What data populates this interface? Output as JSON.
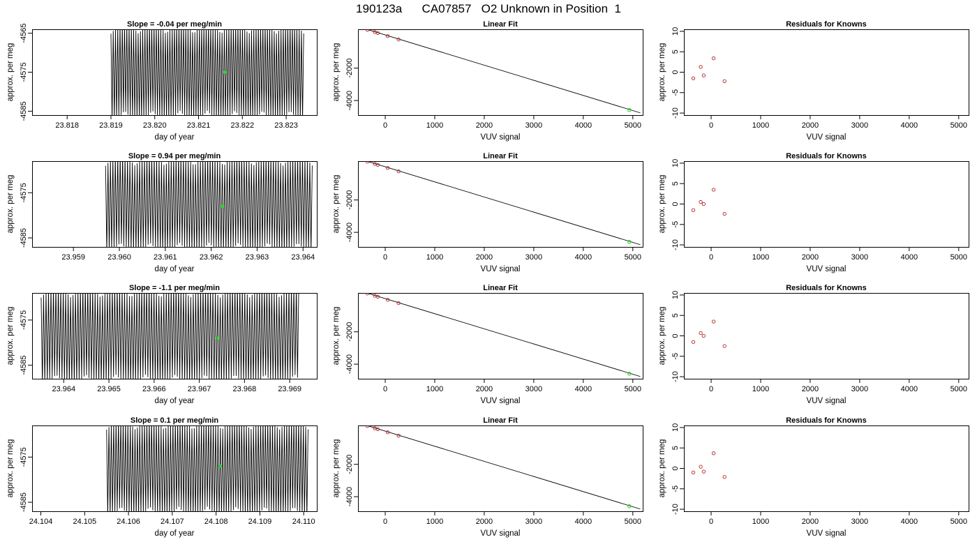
{
  "page": {
    "title": "190123a      CA07857   O2 Unknown in Position  1"
  },
  "colors": {
    "line": "#000000",
    "known_points": "#b22222",
    "unknown_point": "#22dd22",
    "background": "#ffffff"
  },
  "chart_data": [
    {
      "id": "r1-timeseries",
      "type": "line",
      "title": "Slope =  -0.04  per meg/min",
      "xlabel": "day of year",
      "ylabel": "approx. per meg",
      "xlim": [
        23.8172,
        23.8237
      ],
      "ylim": [
        -4586,
        -4564
      ],
      "xticks": [
        23.818,
        23.819,
        23.82,
        23.821,
        23.822,
        23.823
      ],
      "xtick_labels": [
        "23.818",
        "23.819",
        "23.820",
        "23.821",
        "23.822",
        "23.823"
      ],
      "yticks": [
        -4565,
        -4575,
        -4585
      ],
      "ytick_labels": [
        "-4565",
        "-4575",
        "-4585"
      ],
      "series": [
        {
          "x_start": 23.819,
          "x_end": 23.8234,
          "cycles": 85,
          "y_low": -4586,
          "y_high": -4564,
          "y_center": -4575
        }
      ],
      "unknown_point": {
        "x": 23.8216,
        "y": -4575.0
      }
    },
    {
      "id": "r1-fit",
      "type": "scatter",
      "title": "Linear Fit",
      "xlabel": "VUV signal",
      "ylabel": "approx. per meg",
      "xlim": [
        -550,
        5200
      ],
      "ylim": [
        -4900,
        400
      ],
      "xticks": [
        0,
        1000,
        2000,
        3000,
        4000,
        5000
      ],
      "xtick_labels": [
        "0",
        "1000",
        "2000",
        "3000",
        "4000",
        "5000"
      ],
      "yticks": [
        -2000,
        -4000
      ],
      "ytick_labels": [
        "-2000",
        "-4000"
      ],
      "fit_line": {
        "x": [
          -480,
          5150
        ],
        "y": [
          500,
          -4760
        ]
      },
      "known_points": {
        "x": [
          -360,
          -210,
          -150,
          50,
          270
        ],
        "y": [
          370,
          230,
          170,
          -20,
          -230
        ]
      },
      "unknown_point": {
        "x": 4930,
        "y": -4590
      }
    },
    {
      "id": "r1-resid",
      "type": "scatter",
      "title": "Residuals for Knowns",
      "xlabel": "VUV signal",
      "ylabel": "approx. per meg",
      "xlim": [
        -550,
        5200
      ],
      "ylim": [
        -10.5,
        10.5
      ],
      "xticks": [
        0,
        1000,
        2000,
        3000,
        4000,
        5000
      ],
      "xtick_labels": [
        "0",
        "1000",
        "2000",
        "3000",
        "4000",
        "5000"
      ],
      "yticks": [
        10,
        5,
        0,
        -5,
        -10
      ],
      "ytick_labels": [
        "10",
        "5",
        "0",
        "-5",
        "-10"
      ],
      "known_points": {
        "x": [
          -360,
          -210,
          -150,
          50,
          270
        ],
        "y": [
          -1.5,
          1.3,
          -0.8,
          3.4,
          -2.2
        ]
      }
    },
    {
      "id": "r2-timeseries",
      "type": "line",
      "title": "Slope =  0.94  per meg/min",
      "xlabel": "day of year",
      "ylabel": "approx. per meg",
      "xlim": [
        23.9581,
        23.9643
      ],
      "ylim": [
        -4587,
        -4568
      ],
      "xticks": [
        23.959,
        23.96,
        23.961,
        23.962,
        23.963,
        23.964
      ],
      "xtick_labels": [
        "23.959",
        "23.960",
        "23.961",
        "23.962",
        "23.963",
        "23.964"
      ],
      "yticks": [
        -4575,
        -4585
      ],
      "ytick_labels": [
        "-4575",
        "-4585"
      ],
      "series": [
        {
          "x_start": 23.9597,
          "x_end": 23.9642,
          "cycles": 85,
          "y_low": -4587,
          "y_high": -4568,
          "y_center": -4578
        }
      ],
      "unknown_point": {
        "x": 23.96225,
        "y": -4578.0
      }
    },
    {
      "id": "r2-fit",
      "type": "scatter",
      "title": "Linear Fit",
      "xlabel": "VUV signal",
      "ylabel": "approx. per meg",
      "xlim": [
        -550,
        5200
      ],
      "ylim": [
        -4900,
        400
      ],
      "xticks": [
        0,
        1000,
        2000,
        3000,
        4000,
        5000
      ],
      "xtick_labels": [
        "0",
        "1000",
        "2000",
        "3000",
        "4000",
        "5000"
      ],
      "yticks": [
        -2000,
        -4000
      ],
      "ytick_labels": [
        "-2000",
        "-4000"
      ],
      "fit_line": {
        "x": [
          -480,
          5150
        ],
        "y": [
          500,
          -4760
        ]
      },
      "known_points": {
        "x": [
          -360,
          -210,
          -150,
          50,
          270
        ],
        "y": [
          370,
          230,
          170,
          -20,
          -230
        ]
      },
      "unknown_point": {
        "x": 4930,
        "y": -4590
      }
    },
    {
      "id": "r2-resid",
      "type": "scatter",
      "title": "Residuals for Knowns",
      "xlabel": "VUV signal",
      "ylabel": "approx. per meg",
      "xlim": [
        -550,
        5200
      ],
      "ylim": [
        -10.5,
        10.5
      ],
      "xticks": [
        0,
        1000,
        2000,
        3000,
        4000,
        5000
      ],
      "xtick_labels": [
        "0",
        "1000",
        "2000",
        "3000",
        "4000",
        "5000"
      ],
      "yticks": [
        10,
        5,
        0,
        -5,
        -10
      ],
      "ytick_labels": [
        "10",
        "5",
        "0",
        "-5",
        "-10"
      ],
      "known_points": {
        "x": [
          -360,
          -210,
          -150,
          50,
          270
        ],
        "y": [
          -1.5,
          0.5,
          0.0,
          3.5,
          -2.4
        ]
      }
    },
    {
      "id": "r3-timeseries",
      "type": "line",
      "title": "Slope =  -1.1  per meg/min",
      "xlabel": "day of year",
      "ylabel": "approx. per meg",
      "xlim": [
        23.9633,
        23.9696
      ],
      "ylim": [
        -4588,
        -4569
      ],
      "xticks": [
        23.964,
        23.965,
        23.966,
        23.967,
        23.968,
        23.969
      ],
      "xtick_labels": [
        "23.964",
        "23.965",
        "23.966",
        "23.967",
        "23.968",
        "23.969"
      ],
      "yticks": [
        -4575,
        -4585
      ],
      "ytick_labels": [
        "-4575",
        "-4585"
      ],
      "series": [
        {
          "x_start": 23.9635,
          "x_end": 23.9692,
          "cycles": 105,
          "y_low": -4588,
          "y_high": -4569,
          "y_center": -4579
        }
      ],
      "unknown_point": {
        "x": 23.9674,
        "y": -4579.0
      }
    },
    {
      "id": "r3-fit",
      "type": "scatter",
      "title": "Linear Fit",
      "xlabel": "VUV signal",
      "ylabel": "approx. per meg",
      "xlim": [
        -550,
        5200
      ],
      "ylim": [
        -4900,
        400
      ],
      "xticks": [
        0,
        1000,
        2000,
        3000,
        4000,
        5000
      ],
      "xtick_labels": [
        "0",
        "1000",
        "2000",
        "3000",
        "4000",
        "5000"
      ],
      "yticks": [
        -2000,
        -4000
      ],
      "ytick_labels": [
        "-2000",
        "-4000"
      ],
      "fit_line": {
        "x": [
          -480,
          5150
        ],
        "y": [
          500,
          -4760
        ]
      },
      "known_points": {
        "x": [
          -360,
          -210,
          -150,
          50,
          270
        ],
        "y": [
          370,
          230,
          170,
          -20,
          -230
        ]
      },
      "unknown_point": {
        "x": 4930,
        "y": -4590
      }
    },
    {
      "id": "r3-resid",
      "type": "scatter",
      "title": "Residuals for Knowns",
      "xlabel": "VUV signal",
      "ylabel": "approx. per meg",
      "xlim": [
        -550,
        5200
      ],
      "ylim": [
        -10.5,
        10.5
      ],
      "xticks": [
        0,
        1000,
        2000,
        3000,
        4000,
        5000
      ],
      "xtick_labels": [
        "0",
        "1000",
        "2000",
        "3000",
        "4000",
        "5000"
      ],
      "yticks": [
        10,
        5,
        0,
        -5,
        -10
      ],
      "ytick_labels": [
        "10",
        "5",
        "0",
        "-5",
        "-10"
      ],
      "known_points": {
        "x": [
          -360,
          -210,
          -150,
          50,
          270
        ],
        "y": [
          -1.5,
          0.7,
          0.0,
          3.5,
          -2.5
        ]
      }
    },
    {
      "id": "r4-timeseries",
      "type": "line",
      "title": "Slope =  0.1  per meg/min",
      "xlabel": "day of year",
      "ylabel": "approx. per meg",
      "xlim": [
        24.1038,
        24.1103
      ],
      "ylim": [
        -4587,
        -4568
      ],
      "xticks": [
        24.104,
        24.105,
        24.106,
        24.107,
        24.108,
        24.109,
        24.11
      ],
      "xtick_labels": [
        "24.104",
        "24.105",
        "24.106",
        "24.107",
        "24.108",
        "24.109",
        "24.110"
      ],
      "yticks": [
        -4575,
        -4585
      ],
      "ytick_labels": [
        "-4575",
        "-4585"
      ],
      "series": [
        {
          "x_start": 24.1055,
          "x_end": 24.1101,
          "cycles": 85,
          "y_low": -4587,
          "y_high": -4568,
          "y_center": -4577
        }
      ],
      "unknown_point": {
        "x": 24.1081,
        "y": -4577.0
      }
    },
    {
      "id": "r4-fit",
      "type": "scatter",
      "title": "Linear Fit",
      "xlabel": "VUV signal",
      "ylabel": "approx. per meg",
      "xlim": [
        -550,
        5200
      ],
      "ylim": [
        -4900,
        400
      ],
      "xticks": [
        0,
        1000,
        2000,
        3000,
        4000,
        5000
      ],
      "xtick_labels": [
        "0",
        "1000",
        "2000",
        "3000",
        "4000",
        "5000"
      ],
      "yticks": [
        -2000,
        -4000
      ],
      "ytick_labels": [
        "-2000",
        "-4000"
      ],
      "fit_line": {
        "x": [
          -480,
          5150
        ],
        "y": [
          500,
          -4760
        ]
      },
      "known_points": {
        "x": [
          -360,
          -210,
          -150,
          50,
          270
        ],
        "y": [
          370,
          230,
          170,
          -20,
          -230
        ]
      },
      "unknown_point": {
        "x": 4930,
        "y": -4590
      }
    },
    {
      "id": "r4-resid",
      "type": "scatter",
      "title": "Residuals for Knowns",
      "xlabel": "VUV signal",
      "ylabel": "approx. per meg",
      "xlim": [
        -550,
        5200
      ],
      "ylim": [
        -10.5,
        10.5
      ],
      "xticks": [
        0,
        1000,
        2000,
        3000,
        4000,
        5000
      ],
      "xtick_labels": [
        "0",
        "1000",
        "2000",
        "3000",
        "4000",
        "5000"
      ],
      "yticks": [
        10,
        5,
        0,
        -5,
        -10
      ],
      "ytick_labels": [
        "10",
        "5",
        "0",
        "-5",
        "-10"
      ],
      "known_points": {
        "x": [
          -360,
          -210,
          -150,
          50,
          270
        ],
        "y": [
          -1.0,
          0.4,
          -0.8,
          3.7,
          -2.1
        ]
      }
    }
  ]
}
